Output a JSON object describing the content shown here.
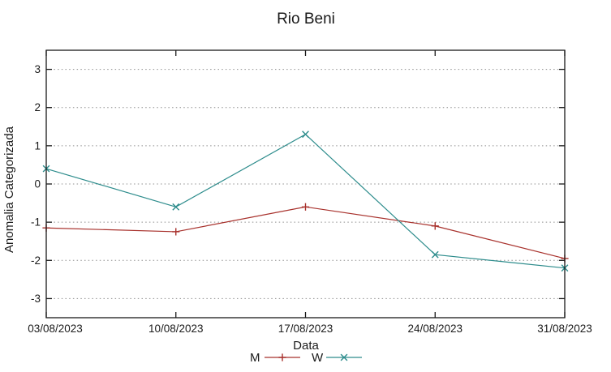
{
  "chart_data": {
    "type": "line",
    "title": "Rio Beni",
    "xlabel": "Data",
    "ylabel": "Anomalia Categorizada",
    "categories": [
      "03/08/2023",
      "10/08/2023",
      "17/08/2023",
      "24/08/2023",
      "31/08/2023"
    ],
    "series": [
      {
        "name": "M",
        "color": "#a8312c",
        "marker": "plus",
        "values": [
          -1.15,
          -1.25,
          -0.6,
          -1.1,
          -1.95
        ]
      },
      {
        "name": "W",
        "color": "#2d8c8c",
        "marker": "cross",
        "values": [
          0.4,
          -0.6,
          1.3,
          -1.85,
          -2.2
        ]
      }
    ],
    "ylim": [
      -3.5,
      3.5
    ],
    "yticks": [
      -3,
      -2,
      -1,
      0,
      1,
      2,
      3
    ],
    "grid": true,
    "grid_style": "dotted",
    "legend_position": "bottom-center",
    "colors": {
      "frame": "#1a1a1a",
      "grid": "#8f8f8f",
      "text": "#1a1a1a",
      "background": "#ffffff"
    }
  }
}
